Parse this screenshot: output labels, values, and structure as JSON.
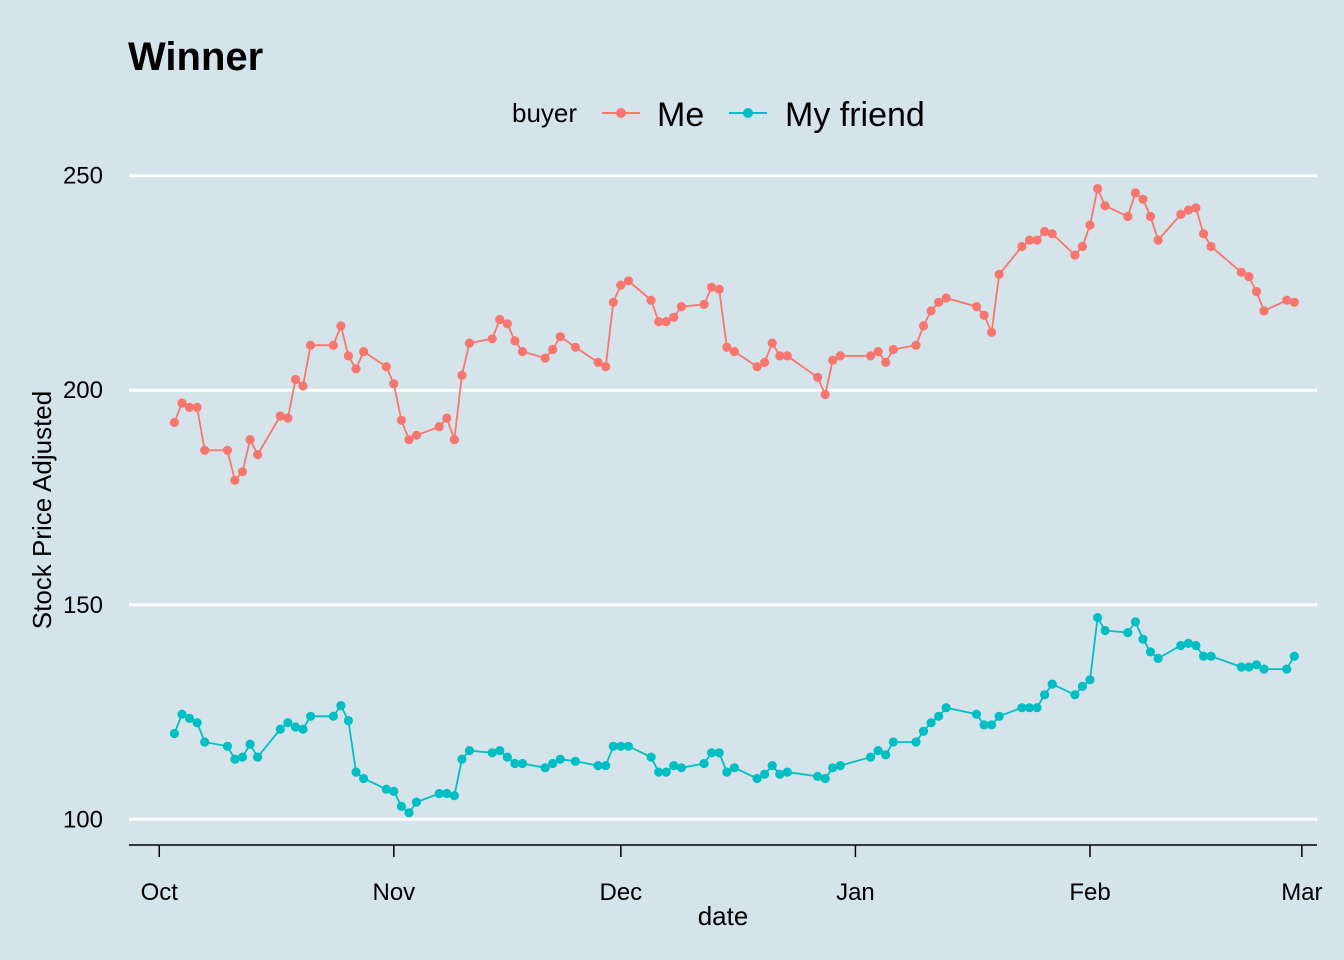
{
  "chart_data": {
    "type": "line",
    "title": "Winner",
    "xlabel": "date",
    "ylabel": "Stock Price Adjusted",
    "legend_title": "buyer",
    "legend_position": "top",
    "grid": "horizontal-major",
    "ylim": [
      94,
      256
    ],
    "xlim": [
      "2022-09-27",
      "2023-03-03"
    ],
    "y_ticks": [
      {
        "value": 100,
        "label": "100"
      },
      {
        "value": 150,
        "label": "150"
      },
      {
        "value": 200,
        "label": "200"
      },
      {
        "value": 250,
        "label": "250"
      }
    ],
    "x_ticks": [
      {
        "date": "2022-10-01",
        "label": "Oct"
      },
      {
        "date": "2022-11-01",
        "label": "Nov"
      },
      {
        "date": "2022-12-01",
        "label": "Dec"
      },
      {
        "date": "2023-01-01",
        "label": "Jan"
      },
      {
        "date": "2023-02-01",
        "label": "Feb"
      },
      {
        "date": "2023-03-01",
        "label": "Mar"
      }
    ],
    "series": [
      {
        "name": "Me",
        "color": "#f8766d",
        "points": [
          [
            "2022-10-03",
            192.5
          ],
          [
            "2022-10-04",
            197.0
          ],
          [
            "2022-10-05",
            196.0
          ],
          [
            "2022-10-06",
            196.0
          ],
          [
            "2022-10-07",
            186.0
          ],
          [
            "2022-10-10",
            186.0
          ],
          [
            "2022-10-11",
            179.0
          ],
          [
            "2022-10-12",
            181.0
          ],
          [
            "2022-10-13",
            188.5
          ],
          [
            "2022-10-14",
            185.0
          ],
          [
            "2022-10-17",
            194.0
          ],
          [
            "2022-10-18",
            193.5
          ],
          [
            "2022-10-19",
            202.5
          ],
          [
            "2022-10-20",
            201.0
          ],
          [
            "2022-10-21",
            210.5
          ],
          [
            "2022-10-24",
            210.5
          ],
          [
            "2022-10-25",
            215.0
          ],
          [
            "2022-10-26",
            208.0
          ],
          [
            "2022-10-27",
            205.0
          ],
          [
            "2022-10-28",
            209.0
          ],
          [
            "2022-10-31",
            205.5
          ],
          [
            "2022-11-01",
            201.5
          ],
          [
            "2022-11-02",
            193.0
          ],
          [
            "2022-11-03",
            188.5
          ],
          [
            "2022-11-04",
            189.5
          ],
          [
            "2022-11-07",
            191.5
          ],
          [
            "2022-11-08",
            193.5
          ],
          [
            "2022-11-09",
            188.5
          ],
          [
            "2022-11-10",
            203.5
          ],
          [
            "2022-11-11",
            211.0
          ],
          [
            "2022-11-14",
            212.0
          ],
          [
            "2022-11-15",
            216.5
          ],
          [
            "2022-11-16",
            215.5
          ],
          [
            "2022-11-17",
            211.5
          ],
          [
            "2022-11-18",
            209.0
          ],
          [
            "2022-11-21",
            207.5
          ],
          [
            "2022-11-22",
            209.5
          ],
          [
            "2022-11-23",
            212.5
          ],
          [
            "2022-11-25",
            210.0
          ],
          [
            "2022-11-28",
            206.5
          ],
          [
            "2022-11-29",
            205.5
          ],
          [
            "2022-11-30",
            220.5
          ],
          [
            "2022-12-01",
            224.5
          ],
          [
            "2022-12-02",
            225.5
          ],
          [
            "2022-12-05",
            221.0
          ],
          [
            "2022-12-06",
            216.0
          ],
          [
            "2022-12-07",
            216.0
          ],
          [
            "2022-12-08",
            217.0
          ],
          [
            "2022-12-09",
            219.5
          ],
          [
            "2022-12-12",
            220.0
          ],
          [
            "2022-12-13",
            224.0
          ],
          [
            "2022-12-14",
            223.5
          ],
          [
            "2022-12-15",
            210.0
          ],
          [
            "2022-12-16",
            209.0
          ],
          [
            "2022-12-19",
            205.5
          ],
          [
            "2022-12-20",
            206.5
          ],
          [
            "2022-12-21",
            211.0
          ],
          [
            "2022-12-22",
            208.0
          ],
          [
            "2022-12-23",
            208.0
          ],
          [
            "2022-12-27",
            203.0
          ],
          [
            "2022-12-28",
            199.0
          ],
          [
            "2022-12-29",
            207.0
          ],
          [
            "2022-12-30",
            208.0
          ],
          [
            "2023-01-03",
            208.0
          ],
          [
            "2023-01-04",
            209.0
          ],
          [
            "2023-01-05",
            206.5
          ],
          [
            "2023-01-06",
            209.5
          ],
          [
            "2023-01-09",
            210.5
          ],
          [
            "2023-01-10",
            215.0
          ],
          [
            "2023-01-11",
            218.5
          ],
          [
            "2023-01-12",
            220.5
          ],
          [
            "2023-01-13",
            221.5
          ],
          [
            "2023-01-17",
            219.5
          ],
          [
            "2023-01-18",
            217.5
          ],
          [
            "2023-01-19",
            213.5
          ],
          [
            "2023-01-20",
            227.0
          ],
          [
            "2023-01-23",
            233.5
          ],
          [
            "2023-01-24",
            235.0
          ],
          [
            "2023-01-25",
            235.0
          ],
          [
            "2023-01-26",
            237.0
          ],
          [
            "2023-01-27",
            236.5
          ],
          [
            "2023-01-30",
            231.5
          ],
          [
            "2023-01-31",
            233.5
          ],
          [
            "2023-02-01",
            238.5
          ],
          [
            "2023-02-02",
            247.0
          ],
          [
            "2023-02-03",
            243.0
          ],
          [
            "2023-02-06",
            240.5
          ],
          [
            "2023-02-07",
            246.0
          ],
          [
            "2023-02-08",
            244.5
          ],
          [
            "2023-02-09",
            240.5
          ],
          [
            "2023-02-10",
            235.0
          ],
          [
            "2023-02-13",
            241.0
          ],
          [
            "2023-02-14",
            242.0
          ],
          [
            "2023-02-15",
            242.5
          ],
          [
            "2023-02-16",
            236.5
          ],
          [
            "2023-02-17",
            233.5
          ],
          [
            "2023-02-21",
            227.5
          ],
          [
            "2023-02-22",
            226.5
          ],
          [
            "2023-02-23",
            223.0
          ],
          [
            "2023-02-24",
            218.5
          ],
          [
            "2023-02-27",
            221.0
          ],
          [
            "2023-02-28",
            220.5
          ]
        ]
      },
      {
        "name": "My friend",
        "color": "#00bfc4",
        "points": [
          [
            "2022-10-03",
            120.0
          ],
          [
            "2022-10-04",
            124.5
          ],
          [
            "2022-10-05",
            123.5
          ],
          [
            "2022-10-06",
            122.5
          ],
          [
            "2022-10-07",
            118.0
          ],
          [
            "2022-10-10",
            117.0
          ],
          [
            "2022-10-11",
            114.0
          ],
          [
            "2022-10-12",
            114.5
          ],
          [
            "2022-10-13",
            117.5
          ],
          [
            "2022-10-14",
            114.5
          ],
          [
            "2022-10-17",
            121.0
          ],
          [
            "2022-10-18",
            122.5
          ],
          [
            "2022-10-19",
            121.5
          ],
          [
            "2022-10-20",
            121.0
          ],
          [
            "2022-10-21",
            124.0
          ],
          [
            "2022-10-24",
            124.0
          ],
          [
            "2022-10-25",
            126.5
          ],
          [
            "2022-10-26",
            123.0
          ],
          [
            "2022-10-27",
            111.0
          ],
          [
            "2022-10-28",
            109.5
          ],
          [
            "2022-10-31",
            107.0
          ],
          [
            "2022-11-01",
            106.5
          ],
          [
            "2022-11-02",
            103.0
          ],
          [
            "2022-11-03",
            101.5
          ],
          [
            "2022-11-04",
            104.0
          ],
          [
            "2022-11-07",
            106.0
          ],
          [
            "2022-11-08",
            106.0
          ],
          [
            "2022-11-09",
            105.5
          ],
          [
            "2022-11-10",
            114.0
          ],
          [
            "2022-11-11",
            116.0
          ],
          [
            "2022-11-14",
            115.5
          ],
          [
            "2022-11-15",
            116.0
          ],
          [
            "2022-11-16",
            114.5
          ],
          [
            "2022-11-17",
            113.0
          ],
          [
            "2022-11-18",
            113.0
          ],
          [
            "2022-11-21",
            112.0
          ],
          [
            "2022-11-22",
            113.0
          ],
          [
            "2022-11-23",
            114.0
          ],
          [
            "2022-11-25",
            113.5
          ],
          [
            "2022-11-28",
            112.5
          ],
          [
            "2022-11-29",
            112.5
          ],
          [
            "2022-11-30",
            117.0
          ],
          [
            "2022-12-01",
            117.0
          ],
          [
            "2022-12-02",
            117.0
          ],
          [
            "2022-12-05",
            114.5
          ],
          [
            "2022-12-06",
            111.0
          ],
          [
            "2022-12-07",
            111.0
          ],
          [
            "2022-12-08",
            112.5
          ],
          [
            "2022-12-09",
            112.0
          ],
          [
            "2022-12-12",
            113.0
          ],
          [
            "2022-12-13",
            115.5
          ],
          [
            "2022-12-14",
            115.5
          ],
          [
            "2022-12-15",
            111.0
          ],
          [
            "2022-12-16",
            112.0
          ],
          [
            "2022-12-19",
            109.5
          ],
          [
            "2022-12-20",
            110.5
          ],
          [
            "2022-12-21",
            112.5
          ],
          [
            "2022-12-22",
            110.5
          ],
          [
            "2022-12-23",
            111.0
          ],
          [
            "2022-12-27",
            110.0
          ],
          [
            "2022-12-28",
            109.5
          ],
          [
            "2022-12-29",
            112.0
          ],
          [
            "2022-12-30",
            112.5
          ],
          [
            "2023-01-03",
            114.5
          ],
          [
            "2023-01-04",
            116.0
          ],
          [
            "2023-01-05",
            115.0
          ],
          [
            "2023-01-06",
            118.0
          ],
          [
            "2023-01-09",
            118.0
          ],
          [
            "2023-01-10",
            120.5
          ],
          [
            "2023-01-11",
            122.5
          ],
          [
            "2023-01-12",
            124.0
          ],
          [
            "2023-01-13",
            126.0
          ],
          [
            "2023-01-17",
            124.5
          ],
          [
            "2023-01-18",
            122.0
          ],
          [
            "2023-01-19",
            122.0
          ],
          [
            "2023-01-20",
            124.0
          ],
          [
            "2023-01-23",
            126.0
          ],
          [
            "2023-01-24",
            126.0
          ],
          [
            "2023-01-25",
            126.0
          ],
          [
            "2023-01-26",
            129.0
          ],
          [
            "2023-01-27",
            131.5
          ],
          [
            "2023-01-30",
            129.0
          ],
          [
            "2023-01-31",
            131.0
          ],
          [
            "2023-02-01",
            132.5
          ],
          [
            "2023-02-02",
            147.0
          ],
          [
            "2023-02-03",
            144.0
          ],
          [
            "2023-02-06",
            143.5
          ],
          [
            "2023-02-07",
            146.0
          ],
          [
            "2023-02-08",
            142.0
          ],
          [
            "2023-02-09",
            139.0
          ],
          [
            "2023-02-10",
            137.5
          ],
          [
            "2023-02-13",
            140.5
          ],
          [
            "2023-02-14",
            141.0
          ],
          [
            "2023-02-15",
            140.5
          ],
          [
            "2023-02-16",
            138.0
          ],
          [
            "2023-02-17",
            138.0
          ],
          [
            "2023-02-21",
            135.5
          ],
          [
            "2023-02-22",
            135.5
          ],
          [
            "2023-02-23",
            136.0
          ],
          [
            "2023-02-24",
            135.0
          ],
          [
            "2023-02-27",
            135.0
          ],
          [
            "2023-02-28",
            138.0
          ]
        ]
      }
    ]
  }
}
